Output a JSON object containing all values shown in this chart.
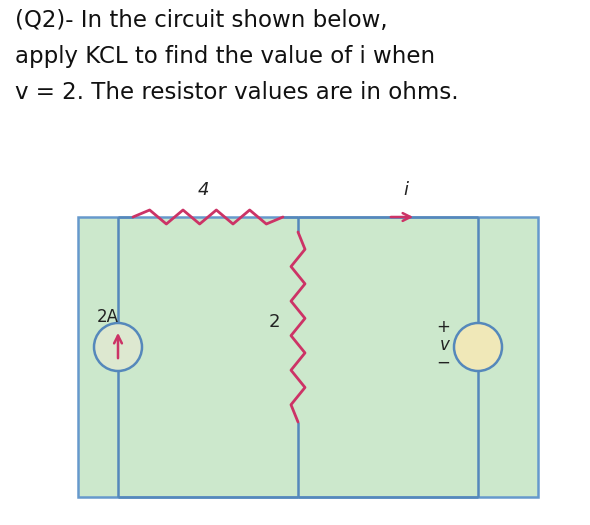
{
  "title_lines": [
    "(Q2)- In the circuit shown below,",
    "apply KCL to find the value of i when",
    "v = 2. The resistor values are in ohms."
  ],
  "title_fontsize": 16.5,
  "bg_color": "#ffffff",
  "circuit_bg": "#cce8cc",
  "circuit_border": "#6699cc",
  "wire_color": "#5588bb",
  "resistor_color": "#cc3366",
  "text_color": "#111111",
  "label_color": "#222222"
}
